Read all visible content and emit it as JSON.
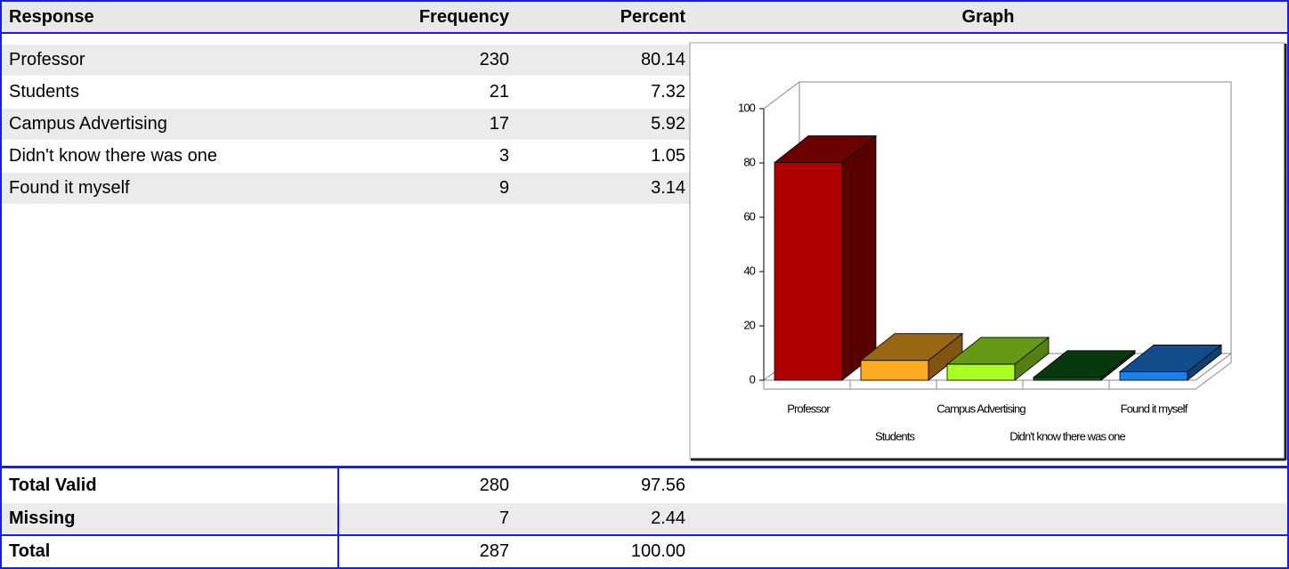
{
  "table": {
    "columns": [
      "Response",
      "Frequency",
      "Percent",
      "Graph"
    ],
    "rows": [
      [
        "Professor",
        "230",
        "80.14"
      ],
      [
        "Students",
        "21",
        "7.32"
      ],
      [
        "Campus Advertising",
        "17",
        "5.92"
      ],
      [
        "Didn't know there was one",
        "3",
        "1.05"
      ],
      [
        "Found it myself",
        "9",
        "3.14"
      ]
    ]
  },
  "totals": {
    "rows": [
      [
        "Total Valid",
        "280",
        "97.56"
      ],
      [
        "Missing",
        "7",
        "2.44"
      ],
      [
        "Total",
        "287",
        "100.00"
      ]
    ]
  },
  "chart_data": {
    "type": "bar3d",
    "categories": [
      "Professor",
      "Students",
      "Campus Advertising",
      "Didn't know there was one",
      "Found it myself"
    ],
    "values": [
      80.14,
      7.32,
      5.92,
      1.05,
      3.14
    ],
    "colors": [
      "#b00000",
      "#ffaa22",
      "#aaff22",
      "#0b5e1a",
      "#1e80e8"
    ],
    "ylim": [
      0,
      100
    ],
    "yticks": [
      0,
      20,
      40,
      60,
      80,
      100
    ]
  }
}
